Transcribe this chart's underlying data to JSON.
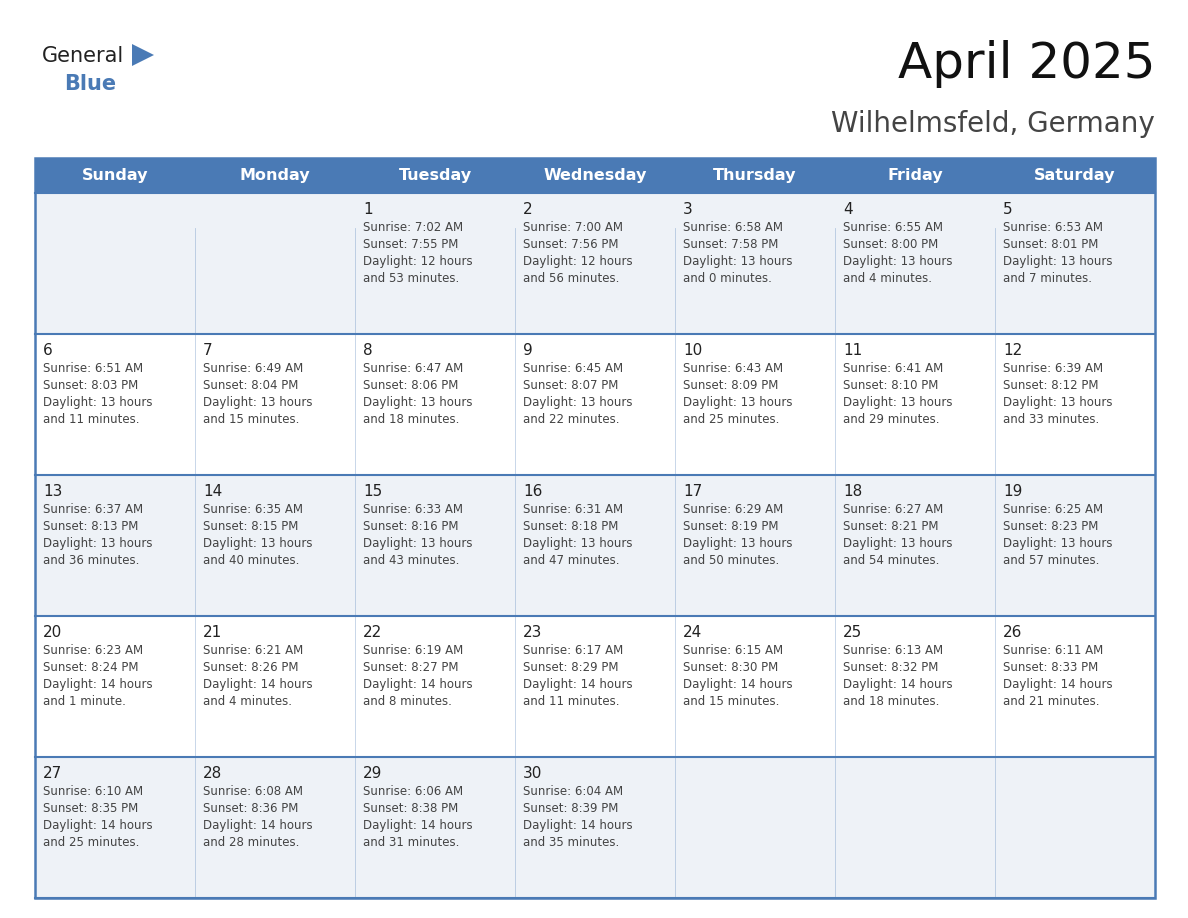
{
  "title": "April 2025",
  "subtitle": "Wilhelmsfeld, Germany",
  "header_bg": "#4a7ab5",
  "header_text": "#ffffff",
  "border_color": "#4a7ab5",
  "cell_text_color": "#444444",
  "day_num_color": "#222222",
  "row_bg_even": "#eef2f7",
  "row_bg_odd": "#ffffff",
  "day_headers": [
    "Sunday",
    "Monday",
    "Tuesday",
    "Wednesday",
    "Thursday",
    "Friday",
    "Saturday"
  ],
  "cal_data": [
    [
      {
        "day": "",
        "lines": []
      },
      {
        "day": "",
        "lines": []
      },
      {
        "day": "1",
        "lines": [
          "Sunrise: 7:02 AM",
          "Sunset: 7:55 PM",
          "Daylight: 12 hours",
          "and 53 minutes."
        ]
      },
      {
        "day": "2",
        "lines": [
          "Sunrise: 7:00 AM",
          "Sunset: 7:56 PM",
          "Daylight: 12 hours",
          "and 56 minutes."
        ]
      },
      {
        "day": "3",
        "lines": [
          "Sunrise: 6:58 AM",
          "Sunset: 7:58 PM",
          "Daylight: 13 hours",
          "and 0 minutes."
        ]
      },
      {
        "day": "4",
        "lines": [
          "Sunrise: 6:55 AM",
          "Sunset: 8:00 PM",
          "Daylight: 13 hours",
          "and 4 minutes."
        ]
      },
      {
        "day": "5",
        "lines": [
          "Sunrise: 6:53 AM",
          "Sunset: 8:01 PM",
          "Daylight: 13 hours",
          "and 7 minutes."
        ]
      }
    ],
    [
      {
        "day": "6",
        "lines": [
          "Sunrise: 6:51 AM",
          "Sunset: 8:03 PM",
          "Daylight: 13 hours",
          "and 11 minutes."
        ]
      },
      {
        "day": "7",
        "lines": [
          "Sunrise: 6:49 AM",
          "Sunset: 8:04 PM",
          "Daylight: 13 hours",
          "and 15 minutes."
        ]
      },
      {
        "day": "8",
        "lines": [
          "Sunrise: 6:47 AM",
          "Sunset: 8:06 PM",
          "Daylight: 13 hours",
          "and 18 minutes."
        ]
      },
      {
        "day": "9",
        "lines": [
          "Sunrise: 6:45 AM",
          "Sunset: 8:07 PM",
          "Daylight: 13 hours",
          "and 22 minutes."
        ]
      },
      {
        "day": "10",
        "lines": [
          "Sunrise: 6:43 AM",
          "Sunset: 8:09 PM",
          "Daylight: 13 hours",
          "and 25 minutes."
        ]
      },
      {
        "day": "11",
        "lines": [
          "Sunrise: 6:41 AM",
          "Sunset: 8:10 PM",
          "Daylight: 13 hours",
          "and 29 minutes."
        ]
      },
      {
        "day": "12",
        "lines": [
          "Sunrise: 6:39 AM",
          "Sunset: 8:12 PM",
          "Daylight: 13 hours",
          "and 33 minutes."
        ]
      }
    ],
    [
      {
        "day": "13",
        "lines": [
          "Sunrise: 6:37 AM",
          "Sunset: 8:13 PM",
          "Daylight: 13 hours",
          "and 36 minutes."
        ]
      },
      {
        "day": "14",
        "lines": [
          "Sunrise: 6:35 AM",
          "Sunset: 8:15 PM",
          "Daylight: 13 hours",
          "and 40 minutes."
        ]
      },
      {
        "day": "15",
        "lines": [
          "Sunrise: 6:33 AM",
          "Sunset: 8:16 PM",
          "Daylight: 13 hours",
          "and 43 minutes."
        ]
      },
      {
        "day": "16",
        "lines": [
          "Sunrise: 6:31 AM",
          "Sunset: 8:18 PM",
          "Daylight: 13 hours",
          "and 47 minutes."
        ]
      },
      {
        "day": "17",
        "lines": [
          "Sunrise: 6:29 AM",
          "Sunset: 8:19 PM",
          "Daylight: 13 hours",
          "and 50 minutes."
        ]
      },
      {
        "day": "18",
        "lines": [
          "Sunrise: 6:27 AM",
          "Sunset: 8:21 PM",
          "Daylight: 13 hours",
          "and 54 minutes."
        ]
      },
      {
        "day": "19",
        "lines": [
          "Sunrise: 6:25 AM",
          "Sunset: 8:23 PM",
          "Daylight: 13 hours",
          "and 57 minutes."
        ]
      }
    ],
    [
      {
        "day": "20",
        "lines": [
          "Sunrise: 6:23 AM",
          "Sunset: 8:24 PM",
          "Daylight: 14 hours",
          "and 1 minute."
        ]
      },
      {
        "day": "21",
        "lines": [
          "Sunrise: 6:21 AM",
          "Sunset: 8:26 PM",
          "Daylight: 14 hours",
          "and 4 minutes."
        ]
      },
      {
        "day": "22",
        "lines": [
          "Sunrise: 6:19 AM",
          "Sunset: 8:27 PM",
          "Daylight: 14 hours",
          "and 8 minutes."
        ]
      },
      {
        "day": "23",
        "lines": [
          "Sunrise: 6:17 AM",
          "Sunset: 8:29 PM",
          "Daylight: 14 hours",
          "and 11 minutes."
        ]
      },
      {
        "day": "24",
        "lines": [
          "Sunrise: 6:15 AM",
          "Sunset: 8:30 PM",
          "Daylight: 14 hours",
          "and 15 minutes."
        ]
      },
      {
        "day": "25",
        "lines": [
          "Sunrise: 6:13 AM",
          "Sunset: 8:32 PM",
          "Daylight: 14 hours",
          "and 18 minutes."
        ]
      },
      {
        "day": "26",
        "lines": [
          "Sunrise: 6:11 AM",
          "Sunset: 8:33 PM",
          "Daylight: 14 hours",
          "and 21 minutes."
        ]
      }
    ],
    [
      {
        "day": "27",
        "lines": [
          "Sunrise: 6:10 AM",
          "Sunset: 8:35 PM",
          "Daylight: 14 hours",
          "and 25 minutes."
        ]
      },
      {
        "day": "28",
        "lines": [
          "Sunrise: 6:08 AM",
          "Sunset: 8:36 PM",
          "Daylight: 14 hours",
          "and 28 minutes."
        ]
      },
      {
        "day": "29",
        "lines": [
          "Sunrise: 6:06 AM",
          "Sunset: 8:38 PM",
          "Daylight: 14 hours",
          "and 31 minutes."
        ]
      },
      {
        "day": "30",
        "lines": [
          "Sunrise: 6:04 AM",
          "Sunset: 8:39 PM",
          "Daylight: 14 hours",
          "and 35 minutes."
        ]
      },
      {
        "day": "",
        "lines": []
      },
      {
        "day": "",
        "lines": []
      },
      {
        "day": "",
        "lines": []
      }
    ]
  ],
  "logo_general_color": "#222222",
  "logo_blue_color": "#4a7ab5",
  "logo_triangle_color": "#4a7ab5"
}
